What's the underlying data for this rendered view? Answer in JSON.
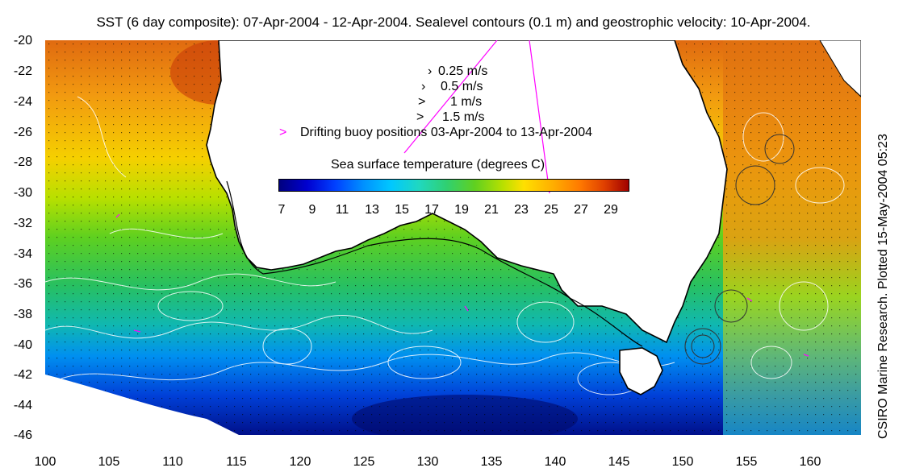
{
  "title": "SST (6 day composite): 07-Apr-2004 - 12-Apr-2004. Sealevel contours (0.1 m) and geostrophic velocity: 10-Apr-2004.",
  "credit": "CSIRO Marine Research. Plotted 15-May-2004 05:23",
  "y_ticks": [
    "-20",
    "-22",
    "-24",
    "-26",
    "-28",
    "-30",
    "-32",
    "-34",
    "-36",
    "-38",
    "-40",
    "-42",
    "-44",
    "-46"
  ],
  "x_ticks": [
    "100",
    "105",
    "110",
    "115",
    "120",
    "125",
    "130",
    "135",
    "140",
    "145",
    "150",
    "155",
    "160"
  ],
  "legend": {
    "velocity_1": "0.25 m/s",
    "velocity_2": "0.5 m/s",
    "velocity_3": "1 m/s",
    "velocity_4": "1.5 m/s",
    "buoys": "Drifting buoy positions 03-Apr-2004 to 13-Apr-2004"
  },
  "colorbar": {
    "title": "Sea surface temperature (degrees C)",
    "ticks": [
      "7",
      "9",
      "11",
      "13",
      "15",
      "17",
      "19",
      "21",
      "23",
      "25",
      "27",
      "29"
    ]
  },
  "colors": {
    "land": "#ffffff",
    "coast": "#000000",
    "contour": "#ffffff",
    "buoy": "#ff00ff"
  }
}
